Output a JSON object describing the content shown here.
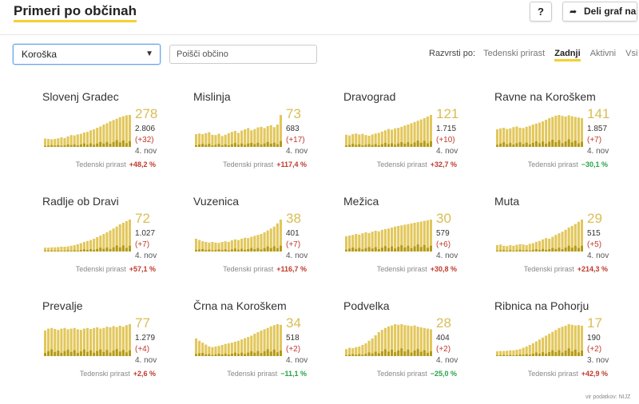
{
  "header": {
    "title": "Primeri po občinah",
    "help_label": "?",
    "share_label": "Deli graf na"
  },
  "controls": {
    "region_value": "Koroška",
    "search_placeholder": "Poišči občino",
    "sort_label": "Razvrsti po:",
    "sort_options": [
      "Tedenski prirast",
      "Zadnji",
      "Aktivni",
      "Vsi"
    ],
    "sort_active": "Zadnji"
  },
  "growth_label": "Tedenski prirast",
  "source_label": "vir podatkov: NIJZ",
  "colors": {
    "bar_light": "#e2c75b",
    "bar_dark": "#b59a16",
    "accent_underline": "#f5d031",
    "big_number": "#d9bd55",
    "positive": "#c0392b",
    "negative": "#27a347"
  },
  "cards": [
    {
      "name": "Slovenj Gradec",
      "big": "278",
      "total": "2.806",
      "delta": "(+32)",
      "date": "4. nov",
      "growth": "+48,2 %",
      "growth_sign": "pos",
      "series": [
        0.26,
        0.25,
        0.24,
        0.25,
        0.27,
        0.3,
        0.28,
        0.33,
        0.37,
        0.36,
        0.39,
        0.41,
        0.45,
        0.47,
        0.52,
        0.55,
        0.6,
        0.64,
        0.7,
        0.74,
        0.8,
        0.84,
        0.88,
        0.93,
        0.96,
        0.99,
        1.0
      ]
    },
    {
      "name": "Mislinja",
      "big": "73",
      "total": "683",
      "delta": "(+17)",
      "date": "4. nov",
      "growth": "+117,4 %",
      "growth_sign": "pos",
      "series": [
        0.4,
        0.42,
        0.4,
        0.43,
        0.46,
        0.38,
        0.37,
        0.41,
        0.34,
        0.38,
        0.43,
        0.47,
        0.5,
        0.44,
        0.51,
        0.55,
        0.59,
        0.52,
        0.56,
        0.61,
        0.63,
        0.59,
        0.65,
        0.68,
        0.62,
        0.7,
        1.0
      ]
    },
    {
      "name": "Dravograd",
      "big": "121",
      "total": "1.715",
      "delta": "(+10)",
      "date": "4. nov",
      "growth": "+32,7 %",
      "growth_sign": "pos",
      "series": [
        0.38,
        0.36,
        0.4,
        0.42,
        0.39,
        0.41,
        0.37,
        0.35,
        0.39,
        0.42,
        0.44,
        0.48,
        0.52,
        0.56,
        0.54,
        0.58,
        0.6,
        0.63,
        0.67,
        0.7,
        0.74,
        0.78,
        0.82,
        0.86,
        0.9,
        0.95,
        1.0
      ]
    },
    {
      "name": "Ravne na Koroškem",
      "big": "141",
      "total": "1.857",
      "delta": "(+7)",
      "date": "4. nov",
      "growth": "−30,1 %",
      "growth_sign": "neg",
      "series": [
        0.55,
        0.58,
        0.6,
        0.56,
        0.58,
        0.62,
        0.64,
        0.6,
        0.59,
        0.63,
        0.66,
        0.7,
        0.73,
        0.76,
        0.8,
        0.85,
        0.9,
        0.94,
        0.98,
        1.0,
        0.97,
        0.95,
        0.99,
        0.96,
        0.94,
        0.92,
        0.9
      ]
    },
    {
      "name": "Radlje ob Dravi",
      "big": "72",
      "total": "1.027",
      "delta": "(+7)",
      "date": "4. nov",
      "growth": "+57,1 %",
      "growth_sign": "pos",
      "series": [
        0.12,
        0.12,
        0.13,
        0.13,
        0.14,
        0.15,
        0.15,
        0.16,
        0.18,
        0.2,
        0.23,
        0.26,
        0.3,
        0.33,
        0.36,
        0.4,
        0.45,
        0.5,
        0.55,
        0.6,
        0.66,
        0.72,
        0.78,
        0.85,
        0.9,
        0.95,
        1.0
      ]
    },
    {
      "name": "Vuzenica",
      "big": "38",
      "total": "401",
      "delta": "(+7)",
      "date": "4. nov",
      "growth": "+116,7 %",
      "growth_sign": "pos",
      "series": [
        0.4,
        0.36,
        0.32,
        0.3,
        0.28,
        0.3,
        0.28,
        0.27,
        0.3,
        0.32,
        0.3,
        0.35,
        0.38,
        0.36,
        0.4,
        0.43,
        0.42,
        0.46,
        0.49,
        0.52,
        0.55,
        0.6,
        0.66,
        0.72,
        0.78,
        0.88,
        1.0
      ]
    },
    {
      "name": "Mežica",
      "big": "30",
      "total": "579",
      "delta": "(+6)",
      "date": "4. nov",
      "growth": "+30,8 %",
      "growth_sign": "pos",
      "series": [
        0.48,
        0.5,
        0.52,
        0.55,
        0.53,
        0.57,
        0.6,
        0.58,
        0.62,
        0.65,
        0.63,
        0.68,
        0.7,
        0.72,
        0.75,
        0.78,
        0.8,
        0.82,
        0.84,
        0.86,
        0.88,
        0.9,
        0.92,
        0.94,
        0.96,
        0.98,
        1.0
      ]
    },
    {
      "name": "Muta",
      "big": "29",
      "total": "515",
      "delta": "(+5)",
      "date": "4. nov",
      "growth": "+214,3 %",
      "growth_sign": "pos",
      "series": [
        0.2,
        0.22,
        0.18,
        0.17,
        0.2,
        0.18,
        0.21,
        0.23,
        0.22,
        0.2,
        0.24,
        0.26,
        0.3,
        0.33,
        0.38,
        0.42,
        0.4,
        0.46,
        0.52,
        0.57,
        0.62,
        0.68,
        0.75,
        0.8,
        0.86,
        0.93,
        1.0
      ]
    },
    {
      "name": "Prevalje",
      "big": "77",
      "total": "1.279",
      "delta": "(+4)",
      "date": "4. nov",
      "growth": "+2,6 %",
      "growth_sign": "pos",
      "series": [
        0.8,
        0.86,
        0.88,
        0.85,
        0.82,
        0.86,
        0.88,
        0.84,
        0.86,
        0.88,
        0.84,
        0.82,
        0.86,
        0.88,
        0.85,
        0.88,
        0.9,
        0.86,
        0.88,
        0.92,
        0.9,
        0.94,
        0.91,
        0.95,
        0.92,
        0.97,
        1.0
      ]
    },
    {
      "name": "Črna na Koroškem",
      "big": "34",
      "total": "518",
      "delta": "(+2)",
      "date": "4. nov",
      "growth": "−11,1 %",
      "growth_sign": "neg",
      "series": [
        0.55,
        0.48,
        0.42,
        0.36,
        0.3,
        0.28,
        0.3,
        0.32,
        0.35,
        0.38,
        0.4,
        0.42,
        0.45,
        0.48,
        0.52,
        0.56,
        0.6,
        0.64,
        0.7,
        0.75,
        0.8,
        0.84,
        0.88,
        0.93,
        0.97,
        1.0,
        0.98
      ]
    },
    {
      "name": "Podvelka",
      "big": "28",
      "total": "404",
      "delta": "(+2)",
      "date": "4. nov",
      "growth": "−25,0 %",
      "growth_sign": "neg",
      "series": [
        0.22,
        0.26,
        0.25,
        0.28,
        0.3,
        0.35,
        0.4,
        0.48,
        0.55,
        0.65,
        0.75,
        0.82,
        0.88,
        0.93,
        0.96,
        1.0,
        0.98,
        1.0,
        0.97,
        0.96,
        0.94,
        0.96,
        0.92,
        0.9,
        0.88,
        0.86,
        0.84
      ]
    },
    {
      "name": "Ribnica na Pohorju",
      "big": "17",
      "total": "190",
      "delta": "(+2)",
      "date": "3. nov",
      "growth": "+42,9 %",
      "growth_sign": "pos",
      "series": [
        0.15,
        0.16,
        0.16,
        0.17,
        0.18,
        0.18,
        0.2,
        0.22,
        0.26,
        0.3,
        0.35,
        0.4,
        0.46,
        0.52,
        0.58,
        0.64,
        0.7,
        0.76,
        0.82,
        0.88,
        0.92,
        0.95,
        1.0,
        0.98,
        0.96,
        0.97,
        0.95
      ]
    }
  ]
}
